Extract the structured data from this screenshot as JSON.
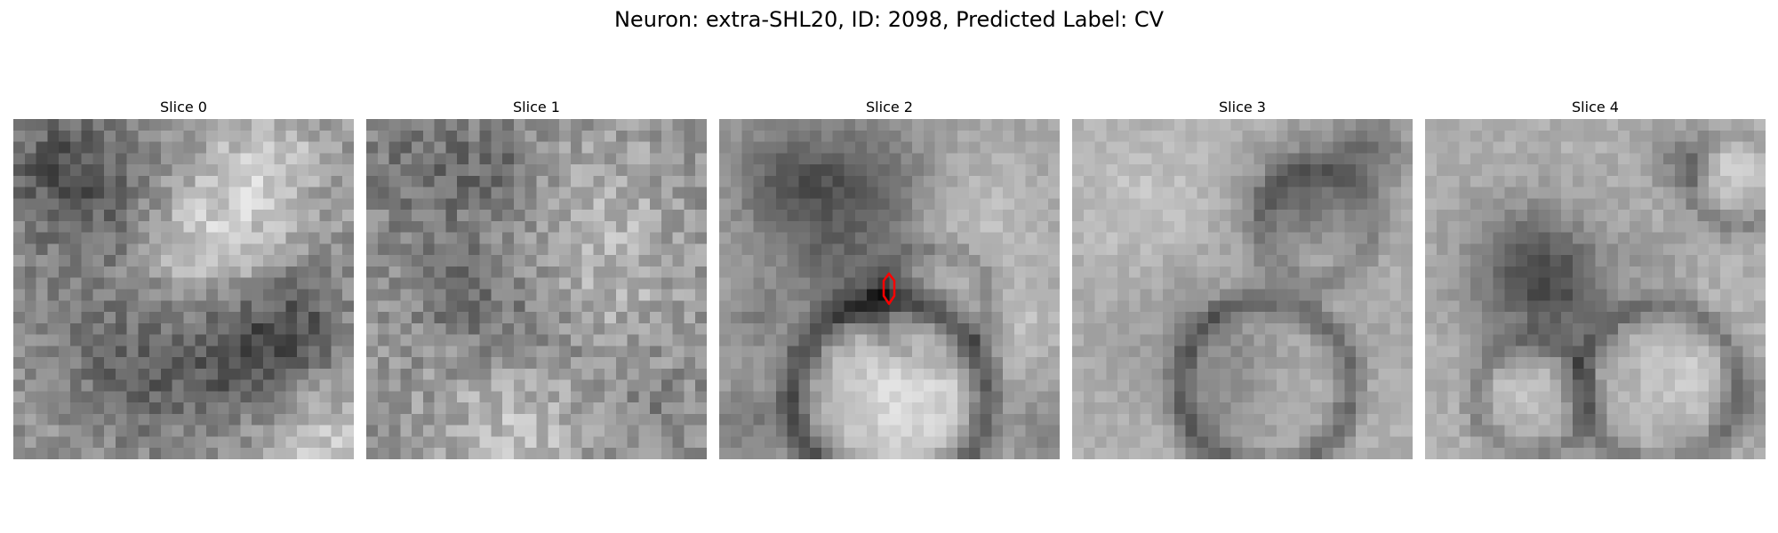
{
  "figure": {
    "title": "Neuron: extra-SHL20, ID: 2098, Predicted Label: CV"
  },
  "panels": [
    {
      "title": "Slice 0",
      "has_marker": false
    },
    {
      "title": "Slice 1",
      "has_marker": false
    },
    {
      "title": "Slice 2",
      "has_marker": true
    },
    {
      "title": "Slice 3",
      "has_marker": false
    },
    {
      "title": "Slice 4",
      "has_marker": false
    }
  ],
  "colors": {
    "marker": "#ff0000",
    "background": "#ffffff"
  }
}
